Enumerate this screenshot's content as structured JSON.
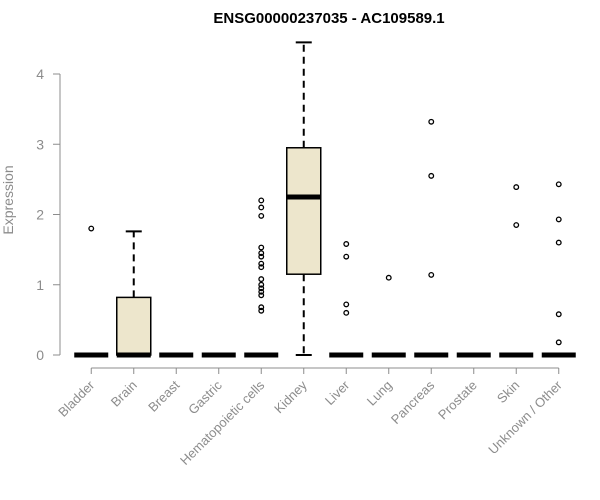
{
  "chart_data": {
    "type": "box",
    "title": "ENSG00000237035 - AC109589.1",
    "xlabel": "",
    "ylabel": "Expression",
    "ylim": [
      0,
      4.45
    ],
    "yticks": [
      0,
      1,
      2,
      3,
      4
    ],
    "grid": false,
    "box_fill": "#ede6cc",
    "categories": [
      "Bladder",
      "Brain",
      "Breast",
      "Gastric",
      "Hematopoietic cells",
      "Kidney",
      "Liver",
      "Lung",
      "Pancreas",
      "Prostate",
      "Skin",
      "Unknown / Other"
    ],
    "boxes": [
      {
        "min": 0,
        "q1": 0,
        "median": 0,
        "q3": 0,
        "max": 0,
        "outliers": [
          1.8
        ]
      },
      {
        "min": 0,
        "q1": 0,
        "median": 0,
        "q3": 0.82,
        "max": 1.76,
        "outliers": []
      },
      {
        "min": 0,
        "q1": 0,
        "median": 0,
        "q3": 0,
        "max": 0,
        "outliers": []
      },
      {
        "min": 0,
        "q1": 0,
        "median": 0,
        "q3": 0,
        "max": 0,
        "outliers": []
      },
      {
        "min": 0,
        "q1": 0,
        "median": 0,
        "q3": 0,
        "max": 0,
        "outliers": [
          0.63,
          0.68,
          0.85,
          0.9,
          0.95,
          1.0,
          1.08,
          1.25,
          1.3,
          1.4,
          1.45,
          1.53,
          1.98,
          2.1,
          2.2
        ]
      },
      {
        "min": 0,
        "q1": 1.15,
        "median": 2.25,
        "q3": 2.95,
        "max": 4.45,
        "outliers": []
      },
      {
        "min": 0,
        "q1": 0,
        "median": 0,
        "q3": 0,
        "max": 0,
        "outliers": [
          0.6,
          0.72,
          1.4,
          1.58
        ]
      },
      {
        "min": 0,
        "q1": 0,
        "median": 0,
        "q3": 0,
        "max": 0,
        "outliers": [
          1.1
        ]
      },
      {
        "min": 0,
        "q1": 0,
        "median": 0,
        "q3": 0,
        "max": 0,
        "outliers": [
          1.14,
          2.55,
          3.32
        ]
      },
      {
        "min": 0,
        "q1": 0,
        "median": 0,
        "q3": 0,
        "max": 0,
        "outliers": []
      },
      {
        "min": 0,
        "q1": 0,
        "median": 0,
        "q3": 0,
        "max": 0,
        "outliers": [
          1.85,
          2.39
        ]
      },
      {
        "min": 0,
        "q1": 0,
        "median": 0,
        "q3": 0,
        "max": 0,
        "outliers": [
          0.18,
          0.58,
          1.6,
          1.93,
          2.43
        ]
      }
    ]
  }
}
